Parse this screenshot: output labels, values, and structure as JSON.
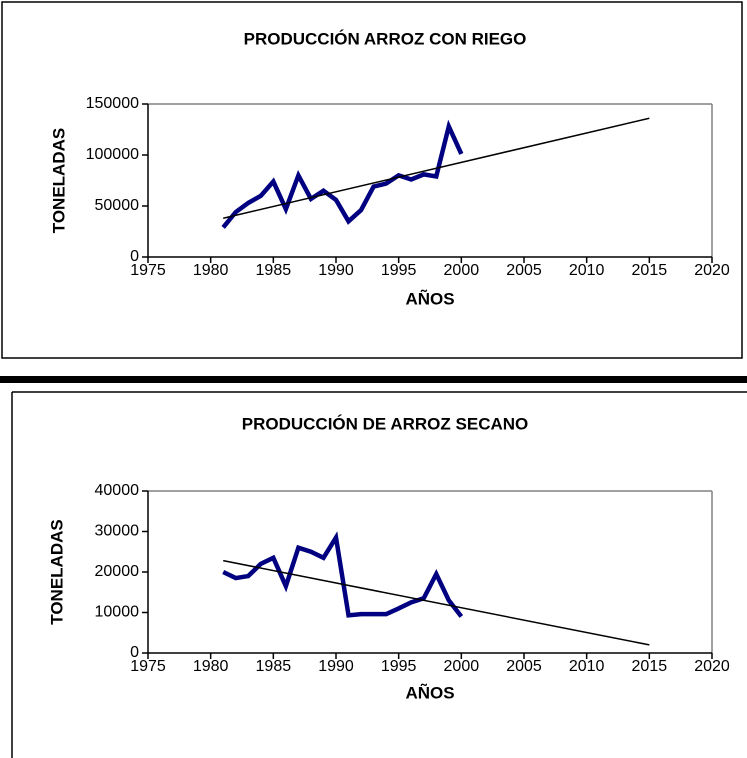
{
  "chart_data": [
    {
      "type": "line",
      "title": "PRODUCCIÓN ARROZ CON RIEGO",
      "x_label": "AÑOS",
      "y_label": "TONELADAS",
      "xlim": [
        1975,
        2020
      ],
      "xticks": [
        1975,
        1980,
        1985,
        1990,
        1995,
        2000,
        2005,
        2010,
        2015,
        2020
      ],
      "ylim": [
        0,
        150000
      ],
      "yticks": [
        0,
        50000,
        100000,
        150000
      ],
      "series": [
        {
          "color": "#000080",
          "x": [
            1981,
            1982,
            1983,
            1984,
            1985,
            1986,
            1987,
            1988,
            1989,
            1990,
            1991,
            1992,
            1993,
            1994,
            1995,
            1996,
            1997,
            1998,
            1999,
            2000
          ],
          "values": [
            29000,
            44000,
            53000,
            60000,
            74000,
            47000,
            80000,
            57000,
            65000,
            56000,
            35000,
            46000,
            69000,
            72000,
            80000,
            76000,
            81000,
            79000,
            128000,
            101000
          ]
        },
        {
          "color": "#000000",
          "x": [
            1981,
            2015
          ],
          "values": [
            38000,
            136000
          ]
        }
      ]
    },
    {
      "type": "line",
      "title": "PRODUCCIÓN DE ARROZ SECANO",
      "x_label": "AÑOS",
      "y_label": "TONELADAS",
      "xlim": [
        1975,
        2020
      ],
      "xticks": [
        1975,
        1980,
        1985,
        1990,
        1995,
        2000,
        2005,
        2010,
        2015,
        2020
      ],
      "ylim": [
        0,
        40000
      ],
      "yticks": [
        0,
        10000,
        20000,
        30000,
        40000
      ],
      "series": [
        {
          "color": "#000080",
          "x": [
            1981,
            1982,
            1983,
            1984,
            1985,
            1986,
            1987,
            1988,
            1989,
            1990,
            1991,
            1992,
            1993,
            1994,
            1995,
            1996,
            1997,
            1998,
            1999,
            2000
          ],
          "values": [
            20000,
            18500,
            19000,
            22000,
            23500,
            16500,
            26000,
            25000,
            23500,
            28500,
            9300,
            9600,
            9600,
            9600,
            11000,
            12500,
            13500,
            19500,
            13000,
            9000
          ]
        },
        {
          "color": "#000000",
          "x": [
            1981,
            2015
          ],
          "values": [
            22800,
            2000
          ]
        }
      ]
    }
  ]
}
